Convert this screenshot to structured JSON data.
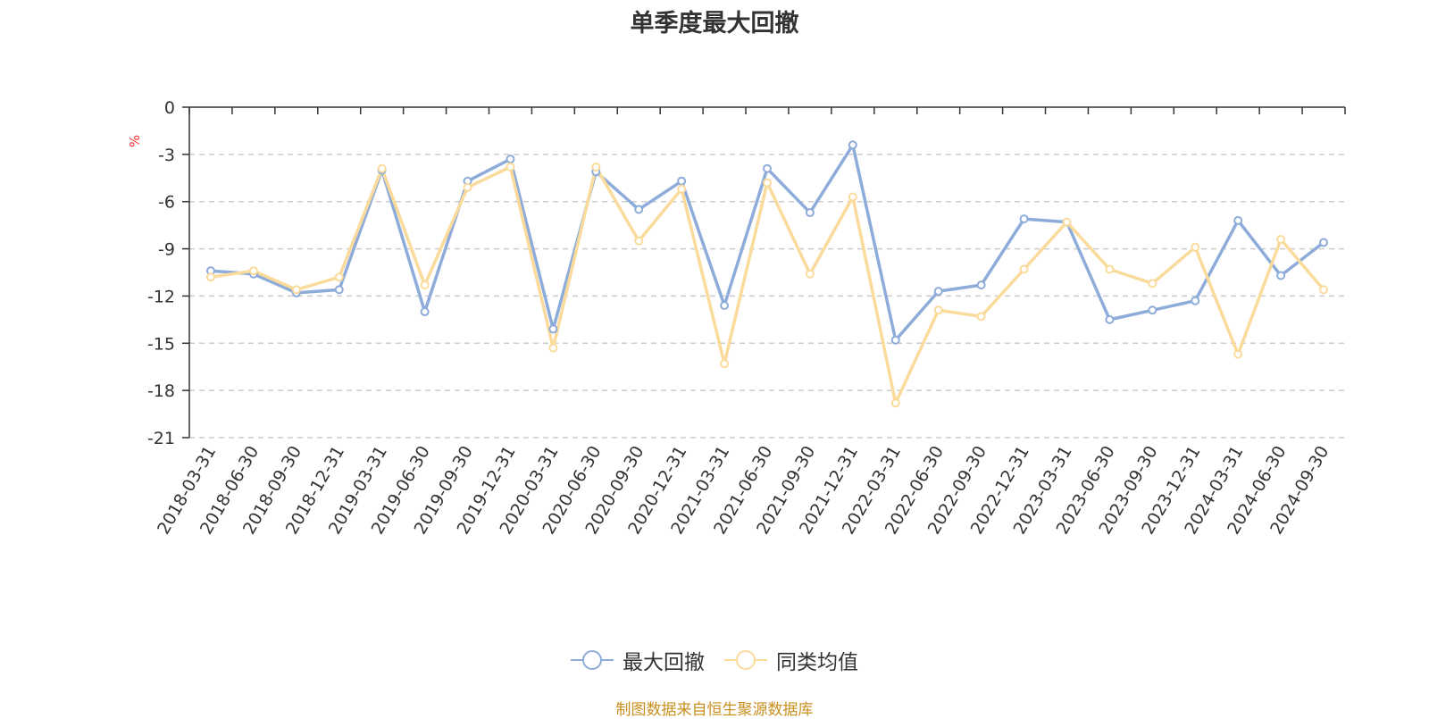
{
  "chart_data": {
    "type": "line",
    "title": "单季度最大回撤",
    "ylabel": "%",
    "ylim": [
      -21,
      0
    ],
    "yticks": [
      0,
      -3,
      -6,
      -9,
      -12,
      -15,
      -18,
      -21
    ],
    "grid": true,
    "legend_position": "bottom",
    "categories": [
      "2018-03-31",
      "2018-06-30",
      "2018-09-30",
      "2018-12-31",
      "2019-03-31",
      "2019-06-30",
      "2019-09-30",
      "2019-12-31",
      "2020-03-31",
      "2020-06-30",
      "2020-09-30",
      "2020-12-31",
      "2021-03-31",
      "2021-06-30",
      "2021-09-30",
      "2021-12-31",
      "2022-03-31",
      "2022-06-30",
      "2022-09-30",
      "2022-12-31",
      "2023-03-31",
      "2023-06-30",
      "2023-09-30",
      "2023-12-31",
      "2024-03-31",
      "2024-06-30",
      "2024-09-30"
    ],
    "series": [
      {
        "name": "最大回撤",
        "color": "#8eacd9",
        "values": [
          -10.4,
          -10.6,
          -11.8,
          -11.6,
          -4.0,
          -13.0,
          -4.7,
          -3.3,
          -14.1,
          -4.1,
          -6.5,
          -4.7,
          -12.6,
          -3.9,
          -6.7,
          -2.4,
          -14.8,
          -11.7,
          -11.3,
          -7.1,
          -7.3,
          -13.5,
          -12.9,
          -12.3,
          -7.2,
          -10.7,
          -8.6
        ]
      },
      {
        "name": "同类均值",
        "color": "#fbdb9c",
        "values": [
          -10.8,
          -10.4,
          -11.6,
          -10.8,
          -3.9,
          -11.3,
          -5.1,
          -3.8,
          -15.3,
          -3.8,
          -8.5,
          -5.2,
          -16.3,
          -4.8,
          -10.6,
          -5.7,
          -18.8,
          -12.9,
          -13.3,
          -10.3,
          -7.3,
          -10.3,
          -11.2,
          -8.9,
          -15.7,
          -8.4,
          -11.6
        ]
      }
    ]
  },
  "footer": {
    "source": "制图数据来自恒生聚源数据库"
  }
}
